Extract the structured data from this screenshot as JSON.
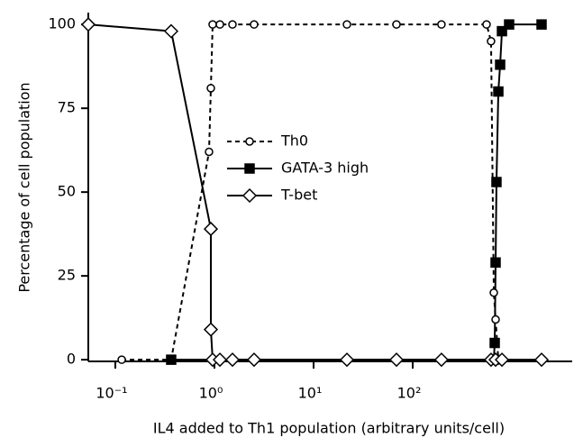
{
  "chart_data": {
    "type": "line",
    "xlabel": "IL4 added to Th1 population (arbitrary units/cell)",
    "ylabel": "Percentage of cell population",
    "xscale": "log",
    "xlim": [
      0.0534,
      4064
    ],
    "ylim": [
      -0.5,
      103
    ],
    "xticks": [
      {
        "value": 0.1,
        "label": "10⁻¹"
      },
      {
        "value": 1,
        "label": "10⁰"
      },
      {
        "value": 10,
        "label": "10¹"
      },
      {
        "value": 100,
        "label": "10²"
      }
    ],
    "yticks": [
      0,
      25,
      50,
      75,
      100
    ],
    "legend": "center",
    "series": [
      {
        "name": "Th0",
        "color": "#000000",
        "dash": true,
        "marker": "circle",
        "marker_fill": "#ffffff",
        "x": [
          0.116,
          0.366,
          0.882,
          0.92,
          0.959,
          1.135,
          1.52,
          2.51,
          21.7,
          68.6,
          195,
          556,
          617,
          658,
          686,
          731
        ],
        "values": [
          0,
          0,
          62,
          81,
          100,
          100,
          100,
          100,
          100,
          100,
          100,
          100,
          95,
          20,
          12,
          0
        ]
      },
      {
        "name": "GATA-3 high",
        "color": "#000000",
        "dash": false,
        "marker": "square",
        "marker_fill": "#000000",
        "x": [
          0.366,
          658,
          672,
          686,
          700,
          731,
          762,
          795,
          939,
          1995
        ],
        "values": [
          0,
          0,
          5,
          29,
          53,
          80,
          88,
          98,
          100,
          100
        ]
      },
      {
        "name": "T-bet",
        "color": "#000000",
        "dash": false,
        "marker": "diamond",
        "marker_fill": "#ffffff",
        "x": [
          0.0534,
          0.366,
          0.92,
          0.92,
          0.959,
          1.135,
          1.52,
          2.51,
          21.7,
          68.6,
          195,
          617,
          686,
          795,
          1995
        ],
        "values": [
          100,
          98,
          39,
          9,
          0,
          0,
          0,
          0,
          0,
          0,
          0,
          0,
          0,
          0,
          0
        ]
      }
    ]
  }
}
